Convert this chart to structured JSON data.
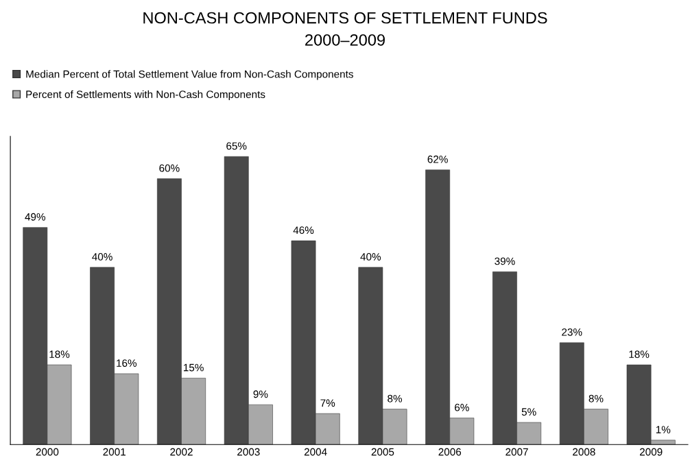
{
  "chart_data": {
    "type": "bar",
    "title": "NON-CASH COMPONENTS OF SETTLEMENT FUNDS\n2000–2009",
    "categories": [
      "2000",
      "2001",
      "2002",
      "2003",
      "2004",
      "2005",
      "2006",
      "2007",
      "2008",
      "2009"
    ],
    "series": [
      {
        "name": "Median Percent of Total Settlement Value from Non-Cash Components",
        "color": "#4a4a4a",
        "values": [
          49,
          40,
          60,
          65,
          46,
          40,
          62,
          39,
          23,
          18
        ],
        "value_labels": [
          "49%",
          "40%",
          "60%",
          "65%",
          "46%",
          "40%",
          "62%",
          "39%",
          "23%",
          "18%"
        ]
      },
      {
        "name": "Percent of Settlements with Non-Cash Components",
        "color": "#a8a8a8",
        "values": [
          18,
          16,
          15,
          9,
          7,
          8,
          6,
          5,
          8,
          1
        ],
        "value_labels": [
          "18%",
          "16%",
          "15%",
          "9%",
          "7%",
          "8%",
          "6%",
          "5%",
          "8%",
          "1%"
        ]
      }
    ],
    "legend": "top left",
    "grid": false,
    "tick_labels": "x"
  }
}
